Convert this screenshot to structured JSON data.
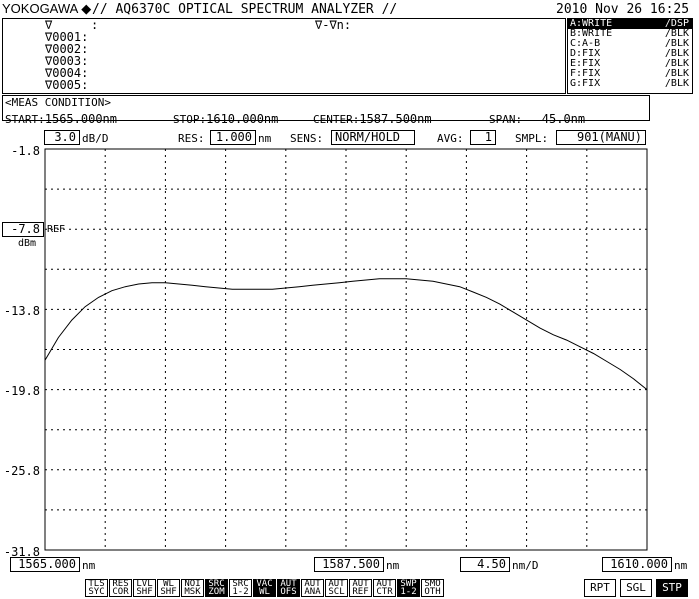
{
  "header": {
    "brand": "YOKOGAWA",
    "logo_icon": "diamond-icon",
    "title": "// AQ6370C OPTICAL SPECTRUM ANALYZER //",
    "datetime": "2010 Nov 26 16:25"
  },
  "markers": {
    "lines": [
      "∇",
      "∇0001:",
      "∇0002:",
      "∇0003:",
      "∇0004:",
      "∇0005:"
    ],
    "delta_label": "∇-∇n:"
  },
  "traces": [
    {
      "name": "A:WRITE",
      "mode": "/DSP",
      "selected": true
    },
    {
      "name": "B:WRITE",
      "mode": "/BLK"
    },
    {
      "name": "C:A-B",
      "mode": "/BLK"
    },
    {
      "name": "D:FIX",
      "mode": "/BLK"
    },
    {
      "name": "E:FIX",
      "mode": "/BLK"
    },
    {
      "name": "F:FIX",
      "mode": "/BLK"
    },
    {
      "name": "G:FIX",
      "mode": "/BLK"
    }
  ],
  "meas": {
    "title": "<MEAS CONDITION>",
    "start_label": "START:",
    "start_value": "1565.000nm",
    "stop_label": "STOP:",
    "stop_value": "1610.000nm",
    "center_label": "CENTER:",
    "center_value": "1587.500nm",
    "span_label": "SPAN:",
    "span_value": "45.0nm"
  },
  "settings": {
    "scale_value": "3.0",
    "scale_unit": "dB/D",
    "res_label": "RES:",
    "res_value": "1.000",
    "res_unit": "nm",
    "sens_label": "SENS:",
    "sens_value": "NORM/HOLD",
    "avg_label": "AVG:",
    "avg_value": "1",
    "smpl_label": "SMPL:",
    "smpl_value": "901(MANU)"
  },
  "yaxis": {
    "ticks": [
      "-1.8",
      "-13.8",
      "-19.8",
      "-25.8",
      "-31.8"
    ],
    "ref_value": "-7.8",
    "ref_label": "REF",
    "ref_unit": "dBm"
  },
  "xaxis": {
    "start": "1565.000",
    "start_unit": "nm",
    "center": "1587.500",
    "center_unit": "nm",
    "div": "4.50",
    "div_unit": "nm/D",
    "stop": "1610.000",
    "stop_unit": "nm"
  },
  "chart_data": {
    "type": "line",
    "xlim": [
      1565.0,
      1610.0
    ],
    "ylim": [
      -31.8,
      -1.8
    ],
    "series": [
      {
        "color": "#000000",
        "x": [
          1565.0,
          1566.0,
          1567.0,
          1568.0,
          1569.0,
          1570.0,
          1571.0,
          1572.0,
          1573.0,
          1574.0,
          1575.0,
          1576.0,
          1577.0,
          1578.0,
          1579.0,
          1580.0,
          1581.0,
          1582.0,
          1583.0,
          1584.0,
          1585.0,
          1586.0,
          1587.0,
          1588.0,
          1589.0,
          1590.0,
          1591.0,
          1592.0,
          1593.0,
          1594.0,
          1595.0,
          1596.0,
          1597.0,
          1598.0,
          1599.0,
          1600.0,
          1601.0,
          1602.0,
          1603.0,
          1604.0,
          1605.0,
          1606.0,
          1607.0,
          1608.0,
          1609.0,
          1610.0
        ],
        "y": [
          -17.6,
          -15.9,
          -14.6,
          -13.6,
          -12.9,
          -12.4,
          -12.1,
          -11.9,
          -11.8,
          -11.8,
          -11.9,
          -12.0,
          -12.1,
          -12.2,
          -12.3,
          -12.3,
          -12.3,
          -12.3,
          -12.2,
          -12.1,
          -12.0,
          -11.9,
          -11.8,
          -11.7,
          -11.6,
          -11.5,
          -11.5,
          -11.5,
          -11.6,
          -11.7,
          -11.9,
          -12.1,
          -12.5,
          -12.9,
          -13.4,
          -14.0,
          -14.6,
          -15.2,
          -15.7,
          -16.1,
          -16.6,
          -17.1,
          -17.7,
          -18.3,
          -19.0,
          -19.8
        ]
      }
    ]
  },
  "buttons": [
    [
      "TLS",
      "SYC"
    ],
    [
      "RES",
      "COR"
    ],
    [
      "LVL",
      "SHF"
    ],
    [
      "WL",
      "SHF"
    ],
    [
      "NOI",
      "MSK"
    ],
    [
      "SRC",
      "ZOM"
    ],
    [
      "SRC",
      "1-2"
    ],
    [
      "VAC",
      "WL"
    ],
    [
      "AUT",
      "OFS"
    ],
    [
      "AUT",
      "ANA"
    ],
    [
      "AUT",
      "SCL"
    ],
    [
      "AUT",
      "REF"
    ],
    [
      "AUT",
      "CTR"
    ],
    [
      "SWP",
      "1-2"
    ],
    [
      "SMO",
      "OTH"
    ]
  ],
  "buttons_inverted": [
    5,
    7,
    8,
    13
  ],
  "right_buttons": [
    "RPT",
    "SGL",
    "STP"
  ]
}
